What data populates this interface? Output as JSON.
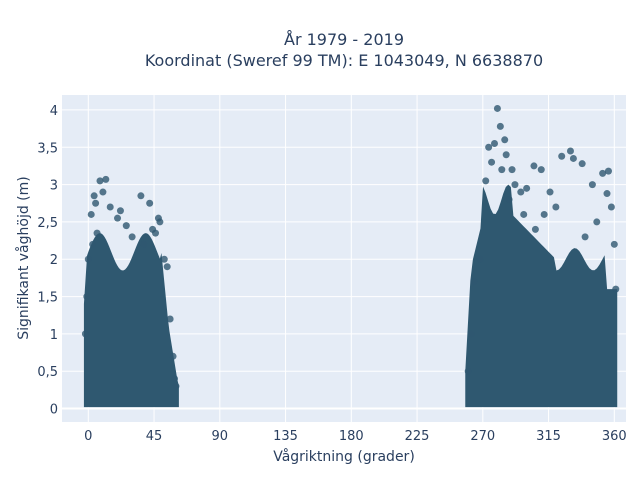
{
  "chart_data": {
    "type": "scatter",
    "title": [
      "År 1979 - 2019",
      "Koordinat (Sweref 99 TM): E 1043049, N 6638870"
    ],
    "xlabel": "Vågriktning (grader)",
    "ylabel": "Signifikant våghöjd (m)",
    "xlim": [
      -18,
      368
    ],
    "ylim": [
      -0.18,
      4.2
    ],
    "xticks": [
      0,
      45,
      90,
      135,
      180,
      225,
      270,
      315,
      360
    ],
    "xtick_labels": [
      "0",
      "45",
      "90",
      "135",
      "180",
      "225",
      "270",
      "315",
      "360"
    ],
    "yticks": [
      0,
      0.5,
      1,
      1.5,
      2,
      2.5,
      3,
      3.5,
      4
    ],
    "ytick_labels": [
      "0",
      "0,5",
      "1",
      "1,5",
      "2",
      "2,5",
      "3",
      "3,5",
      "4"
    ],
    "grid": true,
    "background_color": "#e5ecf6",
    "marker_color": "#2f5870",
    "clusters": [
      {
        "x_range": [
          -3,
          62
        ],
        "y_range": [
          0.05,
          2.5
        ]
      },
      {
        "x_range": [
          258,
          362
        ],
        "y_range": [
          0.05,
          3.6
        ]
      }
    ],
    "points": [
      [
        4,
        2.85
      ],
      [
        8,
        3.05
      ],
      [
        12,
        3.07
      ],
      [
        10,
        2.9
      ],
      [
        5,
        2.75
      ],
      [
        2,
        2.6
      ],
      [
        15,
        2.7
      ],
      [
        20,
        2.55
      ],
      [
        26,
        2.45
      ],
      [
        36,
        2.85
      ],
      [
        42,
        2.75
      ],
      [
        48,
        2.55
      ],
      [
        49,
        2.5
      ],
      [
        44,
        2.4
      ],
      [
        30,
        2.3
      ],
      [
        38,
        2.2
      ],
      [
        6,
        2.35
      ],
      [
        3,
        2.2
      ],
      [
        22,
        2.65
      ],
      [
        46,
        2.35
      ],
      [
        0,
        2.0
      ],
      [
        52,
        2.0
      ],
      [
        54,
        1.9
      ],
      [
        56,
        1.2
      ],
      [
        58,
        0.7
      ],
      [
        59,
        0.4
      ],
      [
        60,
        0.3
      ],
      [
        -1,
        1.5
      ],
      [
        -2,
        1.0
      ],
      [
        280,
        4.02
      ],
      [
        282,
        3.78
      ],
      [
        285,
        3.6
      ],
      [
        278,
        3.55
      ],
      [
        274,
        3.5
      ],
      [
        276,
        3.3
      ],
      [
        283,
        3.2
      ],
      [
        272,
        3.05
      ],
      [
        290,
        3.2
      ],
      [
        296,
        2.9
      ],
      [
        300,
        2.95
      ],
      [
        305,
        3.25
      ],
      [
        310,
        3.2
      ],
      [
        316,
        2.9
      ],
      [
        324,
        3.38
      ],
      [
        330,
        3.45
      ],
      [
        332,
        3.35
      ],
      [
        338,
        3.28
      ],
      [
        345,
        3.0
      ],
      [
        352,
        3.15
      ],
      [
        356,
        3.18
      ],
      [
        355,
        2.88
      ],
      [
        358,
        2.7
      ],
      [
        348,
        2.5
      ],
      [
        340,
        2.3
      ],
      [
        320,
        2.7
      ],
      [
        312,
        2.6
      ],
      [
        306,
        2.4
      ],
      [
        298,
        2.6
      ],
      [
        288,
        2.8
      ],
      [
        268,
        2.0
      ],
      [
        264,
        1.7
      ],
      [
        262,
        1.0
      ],
      [
        260,
        0.5
      ],
      [
        360,
        2.2
      ],
      [
        361,
        1.6
      ],
      [
        286,
        3.4
      ],
      [
        292,
        3.0
      ]
    ]
  }
}
